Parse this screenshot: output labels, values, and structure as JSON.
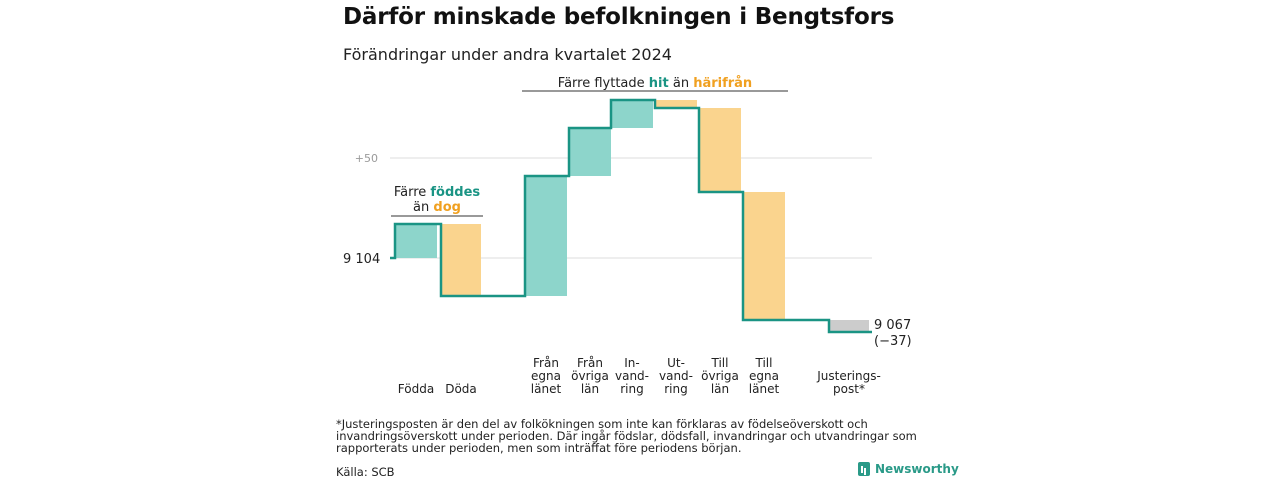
{
  "title": "Därför minskade befolkningen i Bengtsfors",
  "subtitle": "Förändringar under andra kvartalet 2024",
  "colors": {
    "increase": "#8dd5cb",
    "decrease": "#fad48e",
    "line": "#1a9484",
    "accent_increase": "#1a9484",
    "accent_decrease": "#f0a020",
    "grid": "#dddddd",
    "adjust": "#cccccc"
  },
  "chart_data": {
    "type": "waterfall",
    "start": {
      "value": 9104,
      "label": "9 104"
    },
    "end": {
      "value": 9067,
      "label_value": "9 067",
      "label_change": "(−37)"
    },
    "steps": [
      {
        "name": "Födda",
        "label_lines": [
          "Födda"
        ],
        "value": 17
      },
      {
        "name": "Döda",
        "label_lines": [
          "Döda"
        ],
        "value": -36
      },
      {
        "name": "Från egna länet",
        "label_lines": [
          "Från",
          "egna",
          "länet"
        ],
        "value": 60
      },
      {
        "name": "Från övriga län",
        "label_lines": [
          "Från",
          "övriga",
          "län"
        ],
        "value": 24
      },
      {
        "name": "Invandring",
        "label_lines": [
          "In-",
          "vand-",
          "ring"
        ],
        "value": 14
      },
      {
        "name": "Utvandring",
        "label_lines": [
          "Ut-",
          "vand-",
          "ring"
        ],
        "value": -4
      },
      {
        "name": "Till övriga län",
        "label_lines": [
          "Till",
          "övriga",
          "län"
        ],
        "value": -42
      },
      {
        "name": "Till egna länet",
        "label_lines": [
          "Till",
          "egna",
          "länet"
        ],
        "value": -64
      },
      {
        "name": "Justeringspost*",
        "label_lines": [
          "Justerings-",
          "post*"
        ],
        "value": -6
      }
    ],
    "y_ticks": [
      {
        "value": 9154,
        "label": "+50"
      }
    ],
    "annotations": [
      {
        "text_parts": [
          "Färre flyttade ",
          "hit",
          " än ",
          "härifrån"
        ],
        "from_step": 2,
        "to_step": 7
      },
      {
        "line1_parts": [
          "Färre ",
          "föddes"
        ],
        "line2_parts": [
          "än ",
          "dog"
        ],
        "from_step": 0,
        "to_step": 1
      }
    ]
  },
  "footnote": "*Justeringsposten är den del av folkökningen som inte kan förklaras av födelseöverskott och invandringsöverskott under perioden. Där ingår födslar, dödsfall, invandringar och utvandringar som rapporterats under perioden, men som inträffat före periodens början.",
  "source": "Källa: SCB",
  "brand": "Newsworthy"
}
